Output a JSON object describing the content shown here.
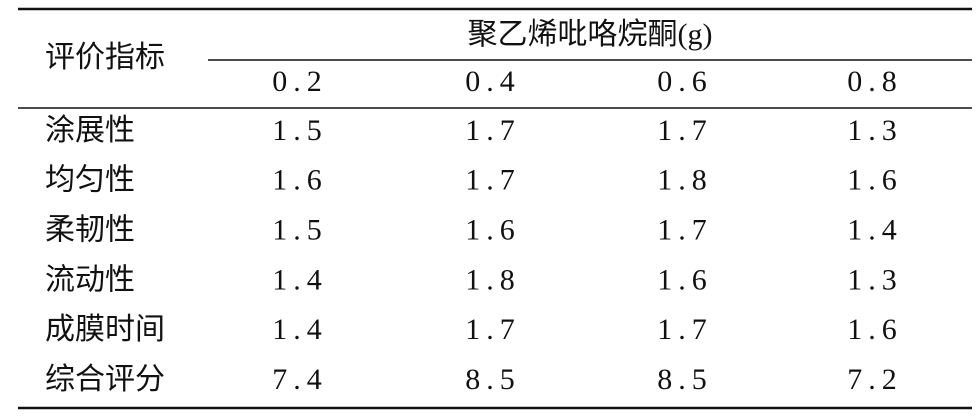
{
  "table": {
    "row_header": "评价指标",
    "group_header": "聚乙烯吡咯烷酮(g)",
    "columns": [
      "0.2",
      "0.4",
      "0.6",
      "0.8"
    ],
    "rows": [
      [
        "涂展性",
        "1.5",
        "1.7",
        "1.7",
        "1.3"
      ],
      [
        "均匀性",
        "1.6",
        "1.7",
        "1.8",
        "1.6"
      ],
      [
        "柔韧性",
        "1.5",
        "1.6",
        "1.7",
        "1.4"
      ],
      [
        "流动性",
        "1.4",
        "1.8",
        "1.6",
        "1.3"
      ],
      [
        "成膜时间",
        "1.4",
        "1.7",
        "1.7",
        "1.6"
      ],
      [
        "综合评分",
        "7.4",
        "8.5",
        "8.5",
        "7.2"
      ]
    ]
  }
}
